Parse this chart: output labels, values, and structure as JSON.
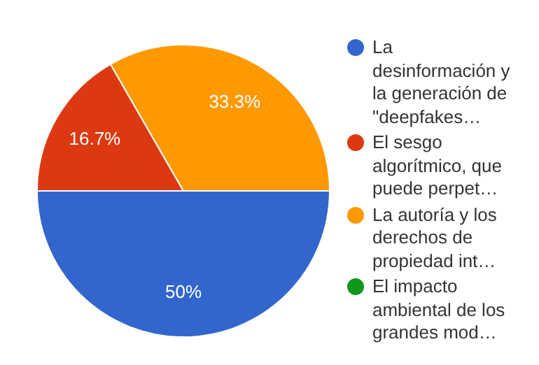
{
  "chart_data": {
    "type": "pie",
    "categories": [
      "La desinformación y la generación de \"deepfakes…",
      "El sesgo algorítmico, que puede perpet…",
      "La autoría y los derechos de propiedad int…",
      "El impacto ambiental de los grandes mod…"
    ],
    "values": [
      50,
      16.7,
      33.3,
      0
    ],
    "colors": [
      "#3366cc",
      "#dc3912",
      "#ff9900",
      "#109618"
    ],
    "value_labels": [
      "50%",
      "16.7%",
      "33.3%",
      null
    ],
    "legend": "right"
  }
}
